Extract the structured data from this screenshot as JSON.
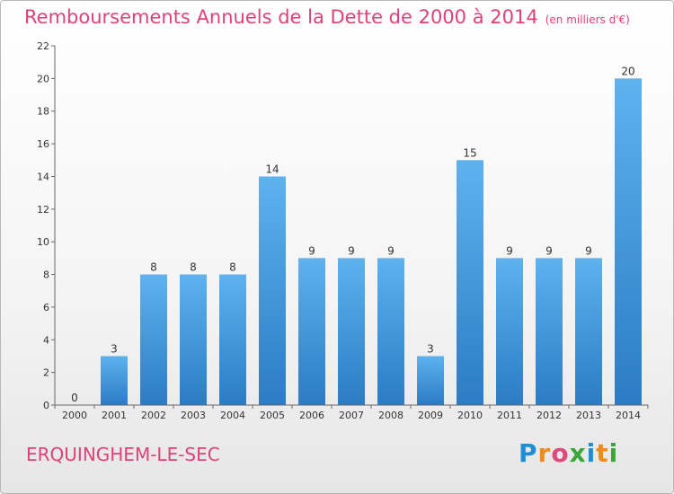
{
  "title": "Remboursements Annuels de la Dette de 2000 à 2014",
  "unit_note": "(en milliers d'€)",
  "commune": "ERQUINGHEM-LE-SEC",
  "logo": {
    "letters": [
      "P",
      "r",
      "o",
      "x",
      "i",
      "t",
      "i"
    ],
    "colors": [
      "#1e8fd6",
      "#f08a1c",
      "#e04a7a",
      "#3aa63a",
      "#1e8fd6",
      "#f08a1c",
      "#3aa63a"
    ]
  },
  "chart_data": {
    "type": "bar",
    "categories": [
      "2000",
      "2001",
      "2002",
      "2003",
      "2004",
      "2005",
      "2006",
      "2007",
      "2008",
      "2009",
      "2010",
      "2011",
      "2012",
      "2013",
      "2014"
    ],
    "values": [
      0,
      3,
      8,
      8,
      8,
      14,
      9,
      9,
      9,
      3,
      15,
      9,
      9,
      9,
      20
    ],
    "data_labels": [
      "0",
      "3",
      "8",
      "8",
      "8",
      "14",
      "9",
      "9",
      "9",
      "3",
      "15",
      "9",
      "9",
      "9",
      "20"
    ],
    "ylim": [
      0,
      22
    ],
    "yticks": [
      0,
      2,
      4,
      6,
      8,
      10,
      12,
      14,
      16,
      18,
      20,
      22
    ],
    "ytick_labels": [
      "0",
      "2",
      "4",
      "6",
      "8",
      "10",
      "12",
      "14",
      "16",
      "18",
      "20",
      "22"
    ],
    "grid": false,
    "bar_color": "#3a8fd8",
    "xlabel": "",
    "ylabel": ""
  }
}
